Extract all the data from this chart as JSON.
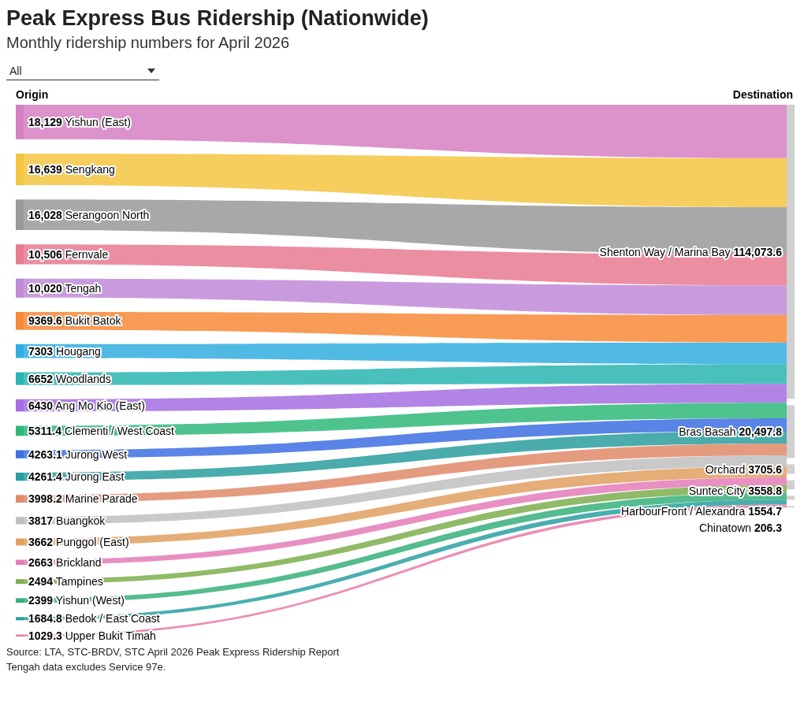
{
  "chart_data": [
    {
      "type": "other",
      "title": "Peak Express Bus Ridership (Nationwide)",
      "subtitle": "Monthly ridership numbers for April 2026",
      "legend_title": "All",
      "xlabel": "Origin",
      "categories": [
        "Yishun (East)",
        "Sengkang",
        "Serangoon North",
        "Fernvale",
        "Tengah",
        "Bukit Batok",
        "Hougang",
        "Woodlands",
        "Ang Mo Kio (East)",
        "Clementi / West Coast",
        "Jurong West",
        "Jurong East",
        "Marine Parade",
        "Buangkok",
        "Punggol (East)",
        "Brickland",
        "Tampines",
        "Yishun (West)",
        "Bedok / East Coast",
        "Upper Bukit Timah"
      ],
      "values": [
        18129,
        16639,
        16028,
        10506,
        10020,
        9369.6,
        7303,
        6652,
        6430,
        5311.4,
        4263.1,
        4261.4,
        3998.2,
        3817,
        3662,
        2663,
        2494,
        2399,
        1684.8,
        1029.3
      ],
      "value_labels": [
        "18,129",
        "16,639",
        "16,028",
        "10,506",
        "10,020",
        "9369.6",
        "7303",
        "6652",
        "6430",
        "5311.4",
        "4263.1",
        "4261.4",
        "3998.2",
        "3817",
        "3662",
        "2663",
        "2494",
        "2399",
        "1684.8",
        "1029.3"
      ],
      "colors": [
        "#d67fc2",
        "#f4c542",
        "#999999",
        "#e87a91",
        "#c08ad8",
        "#f7893a",
        "#31aee0",
        "#2ab5b0",
        "#a56ee0",
        "#2fb87a",
        "#3d6fe0",
        "#2a9d9e",
        "#e08a6a",
        "#c0c0c0",
        "#e0a060",
        "#e47bb8",
        "#7cae4e",
        "#36b07a",
        "#2aa0a0",
        "#e87aa8"
      ],
      "annotations": [
        "Source: LTA, STC-BRDV, STC April 2026 Peak Express Ridership Report",
        "Tengah data excludes Service 97e."
      ]
    },
    {
      "type": "other",
      "xlabel": "Destination",
      "categories": [
        "Shenton Way / Marina Bay",
        "Bras Basah",
        "Orchard",
        "Suntec City",
        "HarbourFront / Alexandra",
        "Chinatown"
      ],
      "values": [
        114073.6,
        20497.8,
        3705.6,
        3558.8,
        1554.7,
        206.3
      ],
      "value_labels": [
        "114,073.6",
        "20,497.8",
        "3705.6",
        "3558.8",
        "1554.7",
        "206.3"
      ],
      "colors": [
        "#d0d0d0",
        "#d0d0d0",
        "#d0d0d0",
        "#d0d0d0",
        "#d0d0d0",
        "#d0d0d0"
      ]
    }
  ]
}
